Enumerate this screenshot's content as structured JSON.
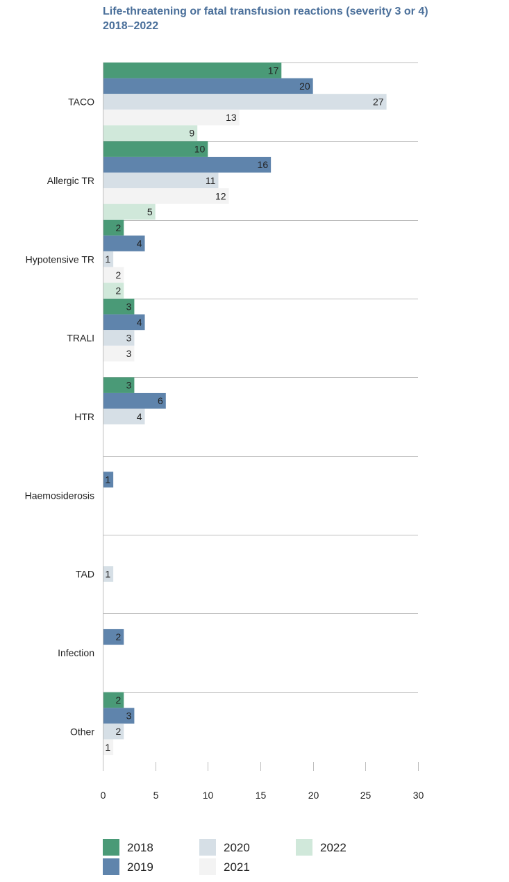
{
  "chart_data": {
    "type": "bar",
    "orientation": "horizontal",
    "title_line1": "Life-threatening or fatal transfusion reactions (severity 3 or 4)",
    "title_line2": "2018–2022",
    "categories": [
      "TACO",
      "Allergic TR",
      "Hypotensive TR",
      "TRALI",
      "HTR",
      "Haemosiderosis",
      "TAD",
      "Infection",
      "Other"
    ],
    "series": [
      {
        "name": "2018",
        "color": "#4a9a77",
        "values": [
          17,
          10,
          2,
          3,
          3,
          null,
          null,
          null,
          2
        ]
      },
      {
        "name": "2019",
        "color": "#5f84ac",
        "values": [
          20,
          16,
          4,
          4,
          6,
          1,
          null,
          2,
          3
        ]
      },
      {
        "name": "2020",
        "color": "#d6dfe6",
        "values": [
          27,
          11,
          1,
          3,
          4,
          null,
          1,
          null,
          2
        ]
      },
      {
        "name": "2021",
        "color": "#f3f3f3",
        "values": [
          13,
          12,
          2,
          3,
          null,
          null,
          null,
          null,
          1
        ]
      },
      {
        "name": "2022",
        "color": "#d0e8da",
        "values": [
          9,
          5,
          2,
          null,
          null,
          null,
          null,
          null,
          null
        ]
      }
    ],
    "xlim": [
      0,
      30
    ],
    "xticks": [
      0,
      5,
      10,
      15,
      20,
      25,
      30
    ],
    "grid": true,
    "legend_position": "bottom"
  }
}
